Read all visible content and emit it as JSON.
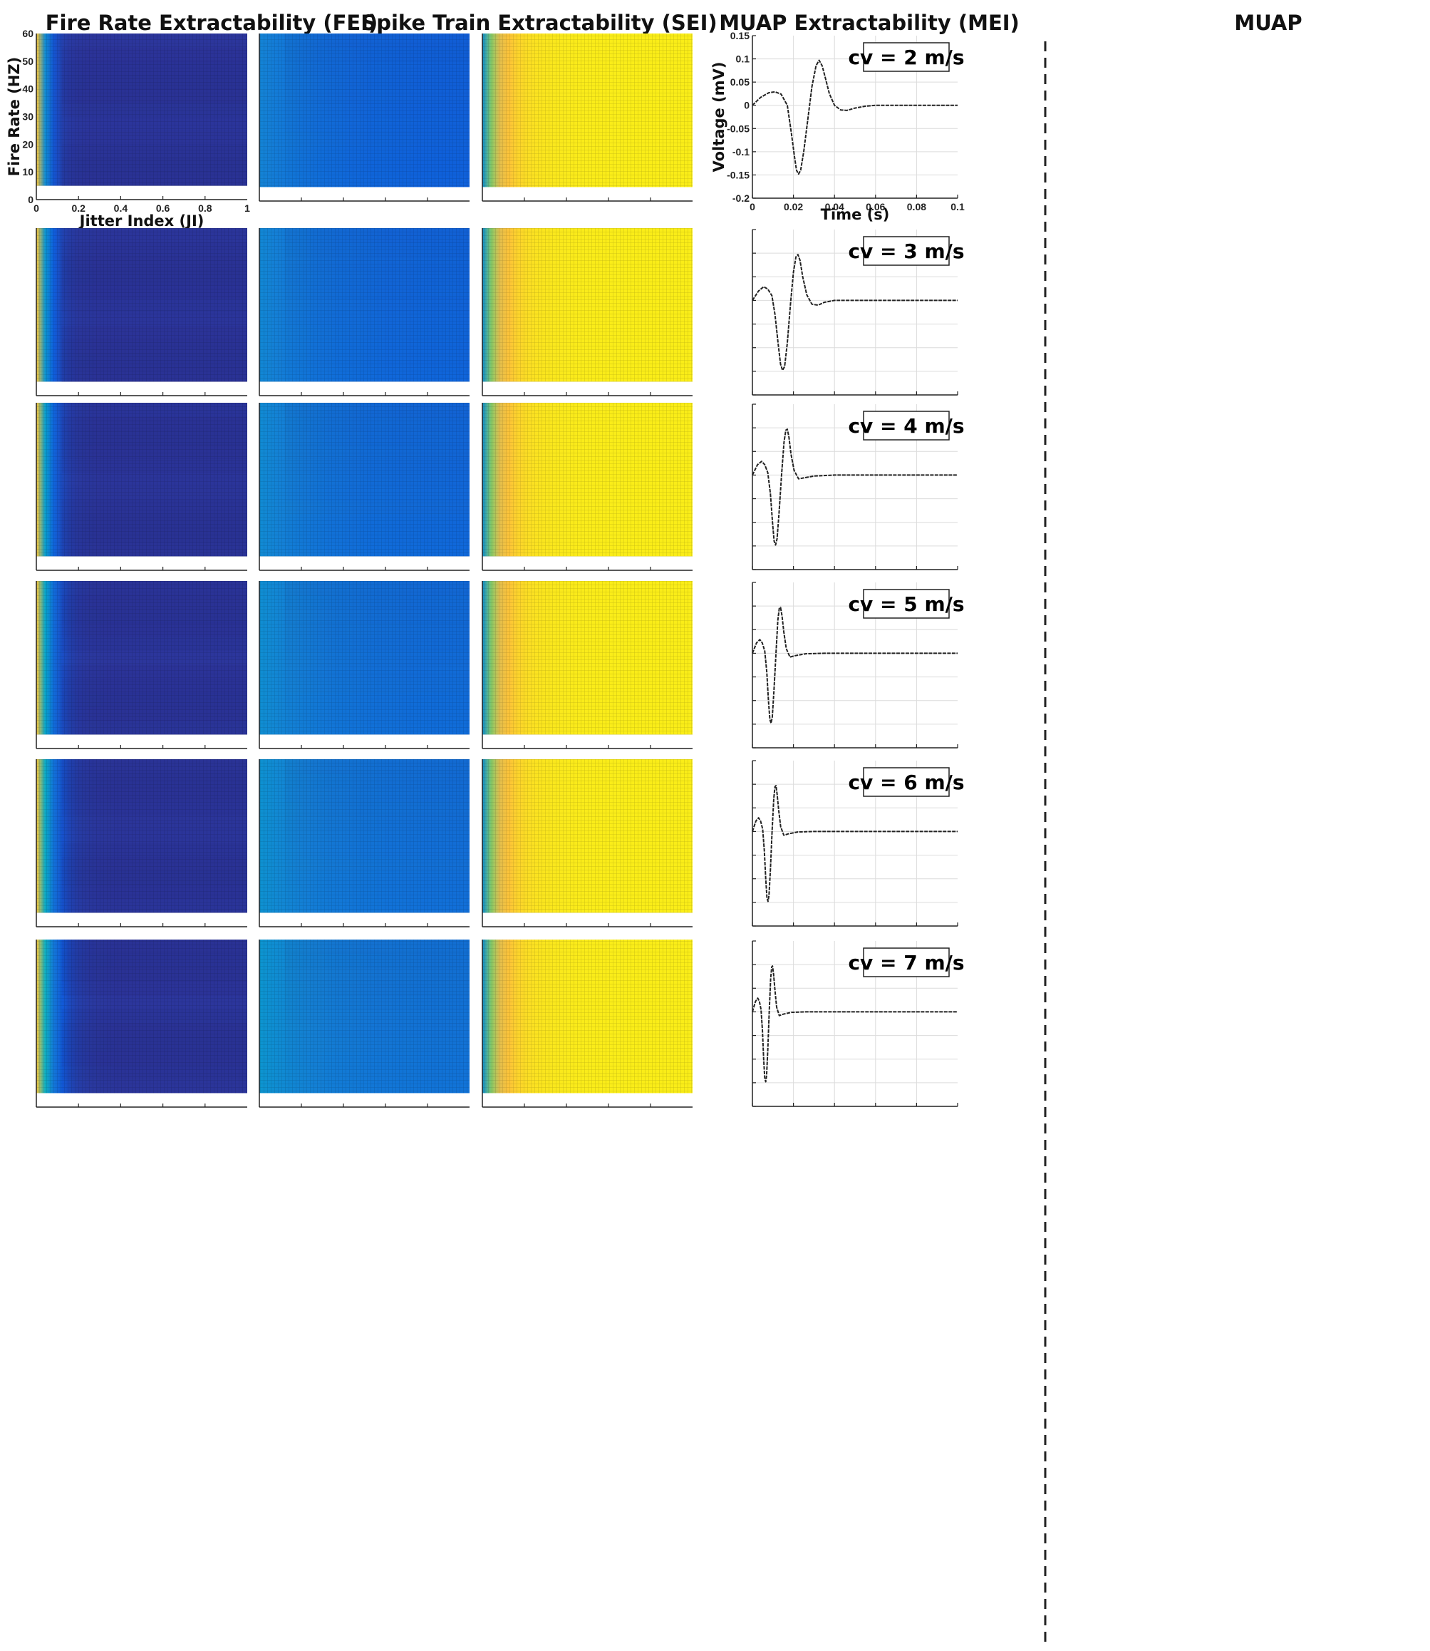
{
  "column_titles": {
    "fei": "Fire Rate Extractability (FEI)",
    "sei": "Spike Train Extractability (SEI)",
    "mei": "MUAP Extractability (MEI)",
    "muap": "MUAP"
  },
  "colors": {
    "heatmap_low": "#352a87",
    "heatmap_high": "#f9fb0e",
    "muap_fill": "#e8b43a",
    "waveform": "#222222",
    "divider": "#222222"
  },
  "chart_data": [
    {
      "type": "heatmap",
      "panel": "fei",
      "xlabel": "Jitter Index (JI)",
      "ylabel": "Fire Rate (HZ)",
      "xlim": [
        0,
        1
      ],
      "ylim": [
        0,
        60
      ],
      "xticks": [
        "0",
        "0.2",
        "0.4",
        "0.6",
        "0.8",
        "1"
      ],
      "yticks": [
        "0",
        "10",
        "20",
        "30",
        "40",
        "50",
        "60"
      ],
      "data_y_range": [
        5,
        60
      ],
      "colormap": "parula",
      "rows": [
        "cv = 2 m/s",
        "cv = 3 m/s",
        "cv = 4 m/s",
        "cv = 5 m/s",
        "cv = 6 m/s",
        "cv = 7 m/s"
      ]
    },
    {
      "type": "heatmap",
      "panel": "sei",
      "xlim": [
        0,
        1
      ],
      "ylim": [
        0,
        60
      ],
      "data_y_range": [
        5,
        60
      ],
      "colormap": "parula",
      "rows": [
        "cv = 2 m/s",
        "cv = 3 m/s",
        "cv = 4 m/s",
        "cv = 5 m/s",
        "cv = 6 m/s",
        "cv = 7 m/s"
      ]
    },
    {
      "type": "heatmap",
      "panel": "mei",
      "xlim": [
        0,
        1
      ],
      "ylim": [
        0,
        60
      ],
      "data_y_range": [
        5,
        60
      ],
      "colormap": "parula",
      "rows": [
        "cv = 2 m/s",
        "cv = 3 m/s",
        "cv = 4 m/s",
        "cv = 5 m/s",
        "cv = 6 m/s",
        "cv = 7 m/s"
      ]
    },
    {
      "type": "line",
      "panel": "muap",
      "xlabel": "Time (s)",
      "ylabel": "Voltage (mV)",
      "xlim": [
        0,
        0.1
      ],
      "ylim": [
        -0.2,
        0.15
      ],
      "xticks": [
        "0",
        "0.02",
        "0.04",
        "0.06",
        "0.08",
        "0.1"
      ],
      "yticks": [
        "0.15",
        "0.1",
        "0.05",
        "0",
        "-0.05",
        "-0.1",
        "-0.15",
        "-0.2"
      ],
      "grid": true,
      "series": [
        {
          "name": "cv = 2 m/s",
          "x": [
            0,
            0.004,
            0.008,
            0.011,
            0.014,
            0.017,
            0.019,
            0.0205,
            0.0215,
            0.0225,
            0.0235,
            0.025,
            0.027,
            0.029,
            0.031,
            0.0325,
            0.034,
            0.0355,
            0.0375,
            0.04,
            0.043,
            0.046,
            0.05,
            0.055,
            0.06,
            0.07,
            0.08,
            0.09,
            0.1
          ],
          "y": [
            0,
            0.017,
            0.027,
            0.029,
            0.024,
            0.0,
            -0.06,
            -0.11,
            -0.14,
            -0.148,
            -0.14,
            -0.1,
            -0.03,
            0.04,
            0.085,
            0.097,
            0.085,
            0.06,
            0.025,
            0.0,
            -0.01,
            -0.011,
            -0.006,
            -0.002,
            0,
            0,
            0,
            0,
            0
          ]
        },
        {
          "name": "cv = 3 m/s",
          "x": [
            0,
            0.003,
            0.0055,
            0.0075,
            0.0095,
            0.011,
            0.0125,
            0.0137,
            0.0147,
            0.0157,
            0.017,
            0.0185,
            0.02,
            0.0212,
            0.0222,
            0.0232,
            0.0245,
            0.0265,
            0.029,
            0.032,
            0.035,
            0.04,
            0.05,
            0.06,
            0.08,
            0.1
          ],
          "y": [
            0,
            0.02,
            0.029,
            0.024,
            0.01,
            -0.03,
            -0.09,
            -0.135,
            -0.148,
            -0.14,
            -0.09,
            -0.01,
            0.06,
            0.092,
            0.097,
            0.085,
            0.05,
            0.012,
            -0.008,
            -0.01,
            -0.004,
            0,
            0,
            0,
            0,
            0
          ]
        },
        {
          "name": "cv = 4 m/s",
          "x": [
            0,
            0.0025,
            0.0045,
            0.006,
            0.0075,
            0.0088,
            0.0098,
            0.0106,
            0.0113,
            0.012,
            0.013,
            0.0142,
            0.0154,
            0.0163,
            0.017,
            0.0178,
            0.0188,
            0.0203,
            0.0225,
            0.025,
            0.03,
            0.04,
            0.06,
            0.08,
            0.1
          ],
          "y": [
            0,
            0.022,
            0.029,
            0.022,
            0.005,
            -0.04,
            -0.1,
            -0.14,
            -0.148,
            -0.135,
            -0.08,
            0.0,
            0.07,
            0.095,
            0.097,
            0.08,
            0.045,
            0.01,
            -0.008,
            -0.006,
            -0.002,
            0,
            0,
            0,
            0
          ]
        },
        {
          "name": "cv = 5 m/s",
          "x": [
            0,
            0.002,
            0.0036,
            0.0048,
            0.006,
            0.007,
            0.0078,
            0.0085,
            0.0091,
            0.0097,
            0.0105,
            0.0115,
            0.0124,
            0.0131,
            0.0137,
            0.0144,
            0.0153,
            0.0165,
            0.0183,
            0.021,
            0.026,
            0.035,
            0.06,
            0.08,
            0.1
          ],
          "y": [
            0,
            0.022,
            0.029,
            0.022,
            0.005,
            -0.04,
            -0.1,
            -0.14,
            -0.148,
            -0.135,
            -0.08,
            0.0,
            0.07,
            0.095,
            0.097,
            0.08,
            0.045,
            0.01,
            -0.008,
            -0.005,
            -0.001,
            0,
            0,
            0,
            0
          ]
        },
        {
          "name": "cv = 6 m/s",
          "x": [
            0,
            0.0017,
            0.003,
            0.004,
            0.005,
            0.0058,
            0.0065,
            0.0071,
            0.0076,
            0.0081,
            0.0088,
            0.0096,
            0.0104,
            0.011,
            0.0115,
            0.012,
            0.0128,
            0.0138,
            0.0153,
            0.0175,
            0.022,
            0.03,
            0.06,
            0.08,
            0.1
          ],
          "y": [
            0,
            0.022,
            0.029,
            0.022,
            0.005,
            -0.04,
            -0.1,
            -0.14,
            -0.148,
            -0.135,
            -0.08,
            0.0,
            0.07,
            0.095,
            0.097,
            0.08,
            0.045,
            0.01,
            -0.008,
            -0.005,
            -0.001,
            0,
            0,
            0,
            0
          ]
        },
        {
          "name": "cv = 7 m/s",
          "x": [
            0,
            0.0015,
            0.0026,
            0.0034,
            0.0042,
            0.0049,
            0.0055,
            0.006,
            0.0065,
            0.0069,
            0.0075,
            0.0082,
            0.0089,
            0.0094,
            0.0098,
            0.0103,
            0.011,
            0.0118,
            0.0131,
            0.015,
            0.019,
            0.026,
            0.06,
            0.08,
            0.1
          ],
          "y": [
            0,
            0.022,
            0.029,
            0.022,
            0.005,
            -0.04,
            -0.1,
            -0.14,
            -0.148,
            -0.135,
            -0.08,
            0.0,
            0.07,
            0.095,
            0.097,
            0.08,
            0.045,
            0.01,
            -0.008,
            -0.005,
            -0.001,
            0,
            0,
            0,
            0
          ]
        }
      ]
    }
  ]
}
